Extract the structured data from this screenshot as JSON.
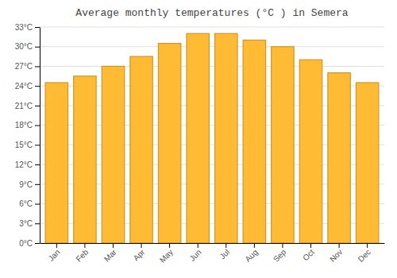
{
  "chart_data": {
    "type": "bar",
    "title": "Average monthly temperatures (°C ) in Semera",
    "categories": [
      "Jan",
      "Feb",
      "Mar",
      "Apr",
      "May",
      "Jun",
      "Jul",
      "Aug",
      "Sep",
      "Oct",
      "Nov",
      "Dec"
    ],
    "values": [
      24.5,
      25.5,
      27.0,
      28.5,
      30.5,
      32.0,
      32.0,
      31.0,
      30.0,
      28.0,
      26.0,
      24.5
    ],
    "color": "#FFBB33",
    "ylim": [
      0,
      33
    ],
    "yticks": [
      {
        "value": 0,
        "label": "0°C"
      },
      {
        "value": 3,
        "label": "3°C"
      },
      {
        "value": 6,
        "label": "6°C"
      },
      {
        "value": 9,
        "label": "9°C"
      },
      {
        "value": 12,
        "label": "12°C"
      },
      {
        "value": 15,
        "label": "15°C"
      },
      {
        "value": 18,
        "label": "18°C"
      },
      {
        "value": 21,
        "label": "21°C"
      },
      {
        "value": 24,
        "label": "24°C"
      },
      {
        "value": 27,
        "label": "27°C"
      },
      {
        "value": 30,
        "label": "30°C"
      },
      {
        "value": 33,
        "label": "33°C"
      }
    ],
    "grid": true
  }
}
